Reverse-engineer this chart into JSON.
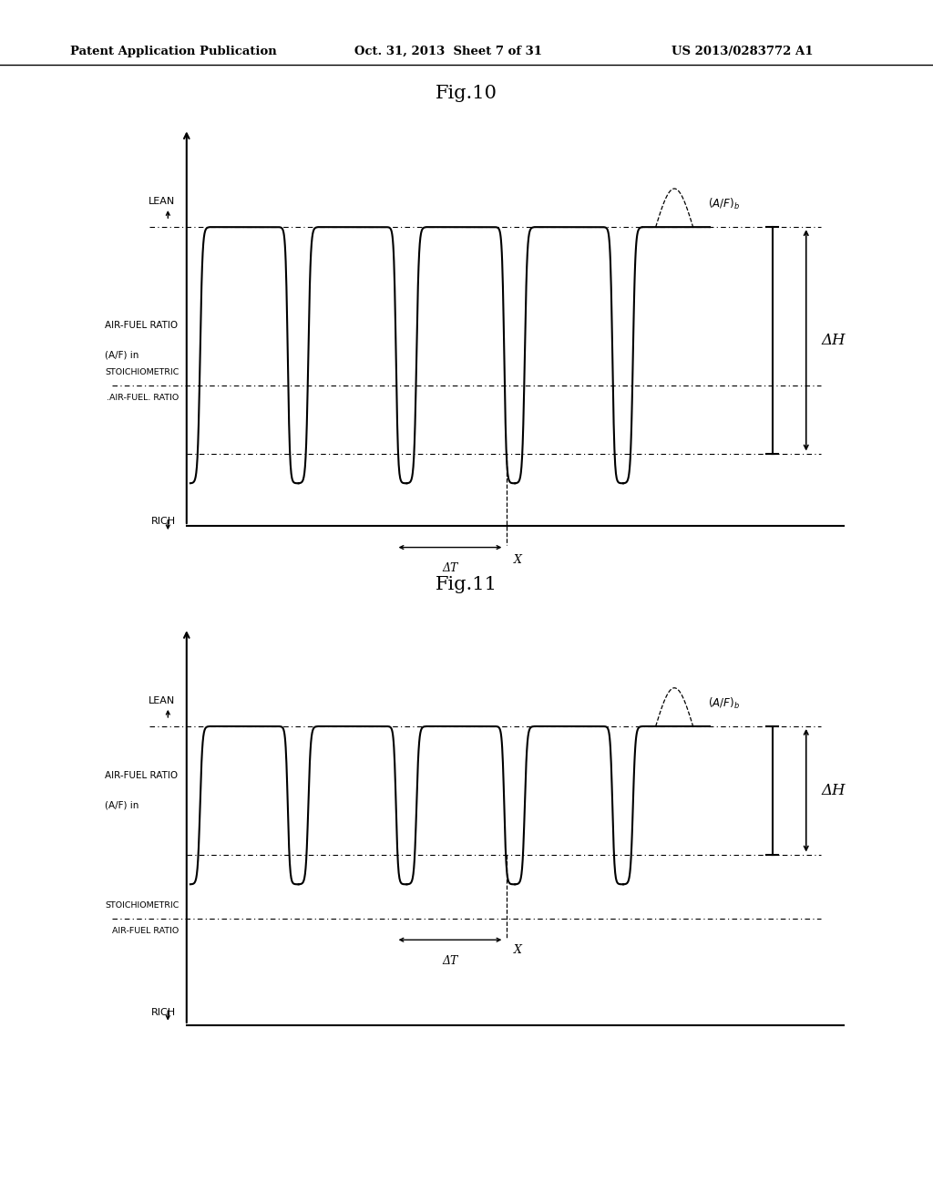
{
  "background_color": "#ffffff",
  "header_text": "Patent Application Publication",
  "header_date": "Oct. 31, 2013  Sheet 7 of 31",
  "header_patent": "US 2013/0283772 A1",
  "fig10_title": "Fig.10",
  "fig11_title": "Fig.11",
  "lean_label": "LEAN",
  "rich_label": "RICH",
  "afr_label_line1": "AIR-FUEL RATIO",
  "afr_label_line2": "(A/F) in",
  "stoich_label_line1_fig10": "STOICHIOMETRIC",
  "stoich_label_line2_fig10": ".AIR-FUEL. RATIO",
  "stoich_label_line1_fig11": "STOICHIOMETRIC",
  "stoich_label_line2_fig11": "AIR-FUEL RATIO",
  "delta_h_label": "ΔH",
  "delta_t_label": "ΔT",
  "x_label": "X",
  "line_color": "#000000",
  "text_color": "#000000"
}
